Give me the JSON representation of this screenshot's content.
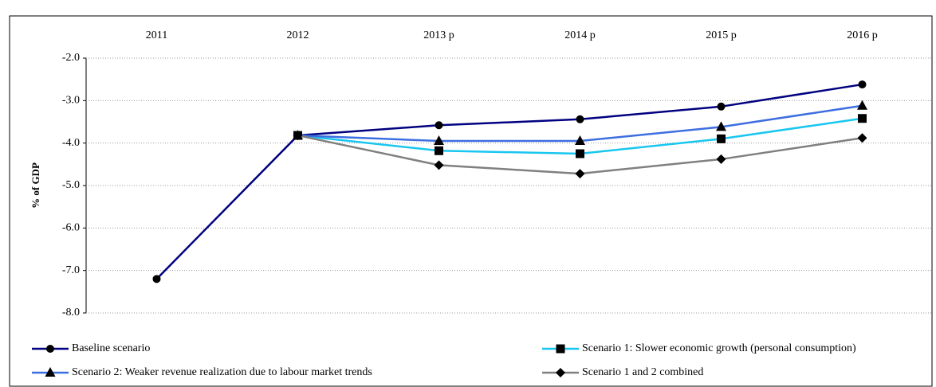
{
  "chart_data": {
    "type": "line",
    "categories": [
      "2011",
      "2012",
      "2013 p",
      "2014 p",
      "2015 p",
      "2016 p"
    ],
    "y_label": "% of GDP",
    "ylim": [
      -8,
      -2
    ],
    "yticks": [
      {
        "value": -2,
        "label": "-2.0"
      },
      {
        "value": -3,
        "label": "-3.0"
      },
      {
        "value": -4,
        "label": "-4.0"
      },
      {
        "value": -5,
        "label": "-5.0"
      },
      {
        "value": -6,
        "label": "-6.0"
      },
      {
        "value": -7,
        "label": "-7.0"
      },
      {
        "value": -8,
        "label": "-8.0"
      }
    ],
    "grid": true,
    "legend": "bottom",
    "series": [
      {
        "name": "Baseline scenario",
        "color": "#000080",
        "marker": "circle",
        "values": [
          -7.2,
          -3.82,
          -3.58,
          -3.44,
          -3.14,
          -2.62
        ]
      },
      {
        "name": "Scenario 1: Slower economic growth (personal consumption)",
        "color": "#19c6ef",
        "marker": "square",
        "values": [
          null,
          -3.82,
          -4.18,
          -4.25,
          -3.9,
          -3.42
        ]
      },
      {
        "name": "Scenario 2: Weaker revenue realization due to labour market trends",
        "color": "#3d6ee0",
        "marker": "triangle",
        "values": [
          null,
          -3.82,
          -3.95,
          -3.95,
          -3.62,
          -3.12
        ]
      },
      {
        "name": "Scenario 1 and 2 combined",
        "color": "#808080",
        "marker": "diamond",
        "values": [
          null,
          -3.82,
          -4.52,
          -4.72,
          -4.38,
          -3.88
        ]
      }
    ]
  }
}
